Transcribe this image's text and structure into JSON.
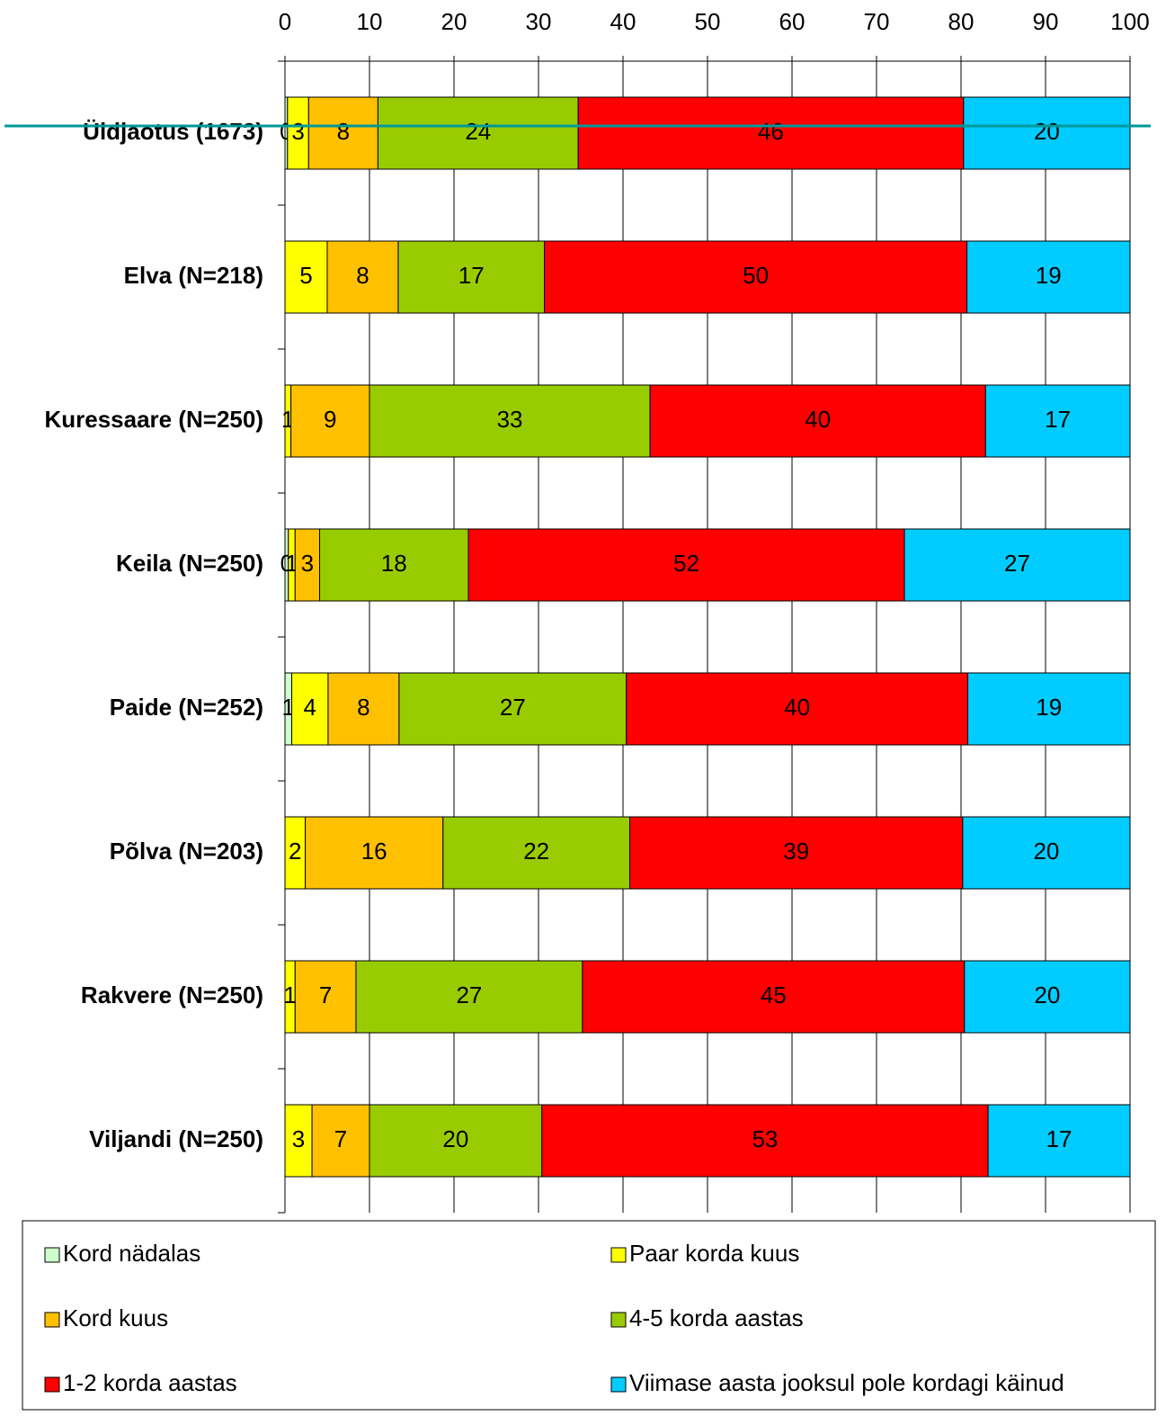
{
  "chart_data": {
    "type": "stacked-bar-horizontal",
    "categories": [
      "Üldjaotus (1673)",
      "Elva (N=218)",
      "Kuressaare (N=250)",
      "Keila (N=250)",
      "Paide (N=252)",
      "Põlva (N=203)",
      "Rakvere (N=250)",
      "Viljandi (N=250)"
    ],
    "series": [
      {
        "name": "Kord nädalas",
        "color": "#ccffcc",
        "values": [
          0.3,
          null,
          null,
          0.4,
          0.8,
          null,
          null,
          null
        ],
        "value_labels": [
          "0",
          null,
          null,
          "0",
          "1",
          null,
          null,
          null
        ]
      },
      {
        "name": "Paar korda kuus",
        "color": "#ffff00",
        "values": [
          2.5,
          5.0,
          0.7,
          0.8,
          4.3,
          2.4,
          1.2,
          3.2
        ],
        "value_labels": [
          "3",
          "5",
          "1",
          "1",
          "4",
          "2",
          "1",
          "3"
        ]
      },
      {
        "name": "Kord kuus",
        "color": "#ffc000",
        "values": [
          8.2,
          8.4,
          9.3,
          2.9,
          8.4,
          16.3,
          7.2,
          6.8
        ],
        "value_labels": [
          "8",
          "8",
          "9",
          "3",
          "8",
          "16",
          "7",
          "7"
        ]
      },
      {
        "name": "4-5 korda aastas",
        "color": "#99cc00",
        "values": [
          23.7,
          17.3,
          33.2,
          17.6,
          26.9,
          22.1,
          26.8,
          20.4
        ],
        "value_labels": [
          "24",
          "17",
          "33",
          "18",
          "27",
          "22",
          "27",
          "20"
        ]
      },
      {
        "name": "1-2 korda aastas",
        "color": "#ff0000",
        "values": [
          45.6,
          50.0,
          39.7,
          51.6,
          40.4,
          39.4,
          45.2,
          52.8
        ],
        "value_labels": [
          "46",
          "50",
          "40",
          "52",
          "40",
          "39",
          "45",
          "53"
        ]
      },
      {
        "name": "Viimase aasta jooksul pole kordagi käinud",
        "color": "#00ccff",
        "values": [
          19.7,
          19.3,
          17.1,
          26.7,
          19.2,
          19.8,
          19.6,
          16.8
        ],
        "value_labels": [
          "20",
          "19",
          "17",
          "27",
          "19",
          "20",
          "20",
          "17"
        ]
      }
    ],
    "xlim": [
      0,
      100
    ],
    "xticks": [
      0,
      10,
      20,
      30,
      40,
      50,
      60,
      70,
      80,
      90,
      100
    ],
    "grid": true
  }
}
